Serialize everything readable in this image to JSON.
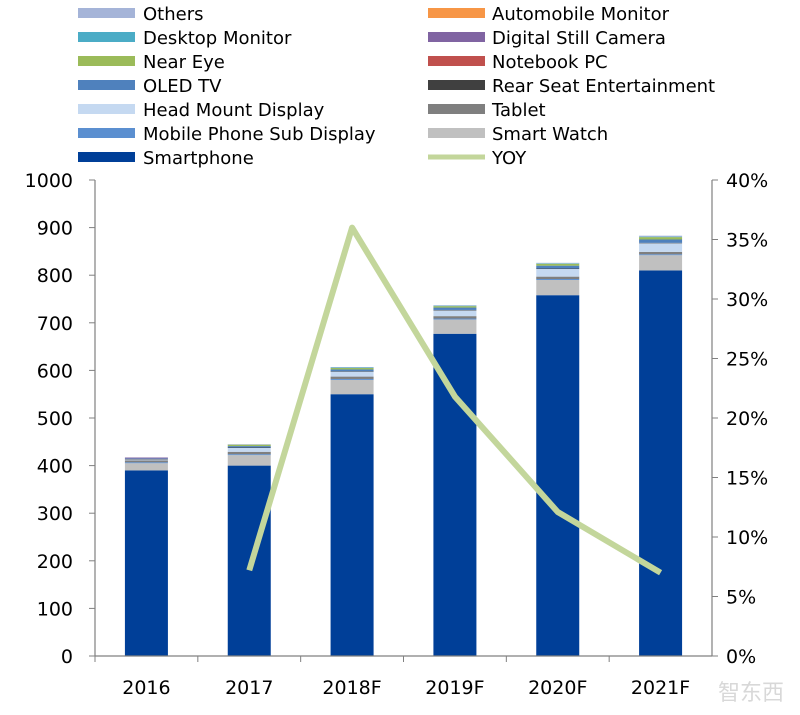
{
  "chart_data": {
    "type": "bar",
    "subtype": "stacked-bar-with-line",
    "title": "",
    "categories": [
      "2016",
      "2017",
      "2018F",
      "2019F",
      "2020F",
      "2021F"
    ],
    "ylim": [
      0,
      1000
    ],
    "yticks": [
      "0",
      "100",
      "200",
      "300",
      "400",
      "500",
      "600",
      "700",
      "800",
      "900",
      "1000"
    ],
    "y2lim": [
      0,
      40
    ],
    "y2ticks": [
      "0%",
      "5%",
      "10%",
      "15%",
      "20%",
      "25%",
      "30%",
      "35%",
      "40%"
    ],
    "grid": false,
    "legend_placement": "top",
    "series": [
      {
        "name": "Smartphone",
        "color": "#003f98",
        "values": [
          390,
          400,
          550,
          677,
          758,
          810
        ]
      },
      {
        "name": "Smart Watch",
        "color": "#c0c0c0",
        "values": [
          15,
          22,
          30,
          30,
          32,
          32
        ]
      },
      {
        "name": "Mobile Phone Sub Display",
        "color": "#5b8fd0",
        "values": [
          2,
          2,
          2,
          2,
          2,
          2
        ]
      },
      {
        "name": "Tablet",
        "color": "#7f7f7f",
        "values": [
          4,
          5,
          5,
          5,
          5,
          5
        ]
      },
      {
        "name": "Head Mount Display",
        "color": "#c5d9f1",
        "values": [
          2,
          8,
          10,
          12,
          16,
          18
        ]
      },
      {
        "name": "Rear Seat Entertainment",
        "color": "#404040",
        "values": [
          1,
          1,
          1,
          1,
          1,
          1
        ]
      },
      {
        "name": "OLED TV",
        "color": "#4f81bd",
        "values": [
          1,
          3,
          4,
          5,
          6,
          7
        ]
      },
      {
        "name": "Notebook PC",
        "color": "#c0504d",
        "values": [
          0,
          0,
          0,
          0,
          0,
          0
        ]
      },
      {
        "name": "Near Eye",
        "color": "#9bbb59",
        "values": [
          0,
          3,
          3,
          3,
          4,
          5
        ]
      },
      {
        "name": "Digital Still Camera",
        "color": "#8064a2",
        "values": [
          2,
          0,
          0,
          0,
          0,
          0
        ]
      },
      {
        "name": "Desktop Monitor",
        "color": "#4bacc6",
        "values": [
          0,
          0,
          1,
          1,
          1,
          1
        ]
      },
      {
        "name": "Automobile Monitor",
        "color": "#f79646",
        "values": [
          0,
          0,
          0,
          0,
          0,
          0
        ]
      },
      {
        "name": "Others",
        "color": "#a5b4d8",
        "values": [
          0,
          1,
          1,
          1,
          1,
          2
        ]
      }
    ],
    "line": {
      "name": "YOY",
      "color": "#c3d69b",
      "axis": "right",
      "values": [
        null,
        7.2,
        36.0,
        21.8,
        12.1,
        7.0
      ]
    },
    "legend_left": [
      "Others",
      "Desktop Monitor",
      "Near Eye",
      "OLED TV",
      "Head Mount Display",
      "Mobile Phone Sub Display",
      "Smartphone"
    ],
    "legend_right": [
      "Automobile Monitor",
      "Digital Still Camera",
      "Notebook PC",
      "Rear Seat Entertainment",
      "Tablet",
      "Smart Watch",
      "YOY"
    ]
  },
  "watermark": "智东西"
}
